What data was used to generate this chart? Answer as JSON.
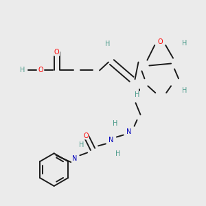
{
  "bg_color": "#ebebeb",
  "bond_color": "#1a1a1a",
  "bond_width": 1.4,
  "atom_colors": {
    "O": "#ff0000",
    "N": "#0000bb",
    "H": "#4a9a8a",
    "C": "#1a1a1a"
  },
  "figsize": [
    3.0,
    3.0
  ],
  "dpi": 100
}
